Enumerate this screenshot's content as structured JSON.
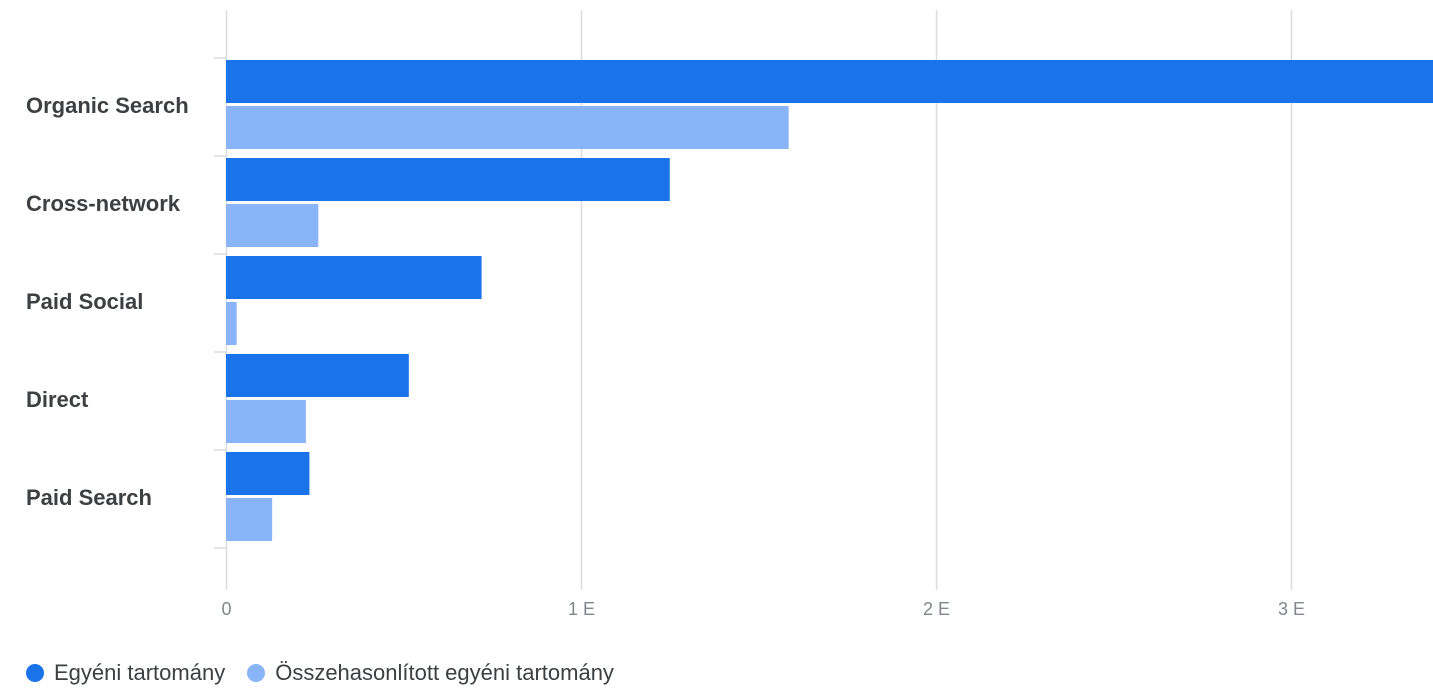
{
  "chart_data": {
    "type": "bar",
    "orientation": "horizontal",
    "categories": [
      "Organic Search",
      "Cross-network",
      "Paid Social",
      "Direct",
      "Paid Search"
    ],
    "series": [
      {
        "name": "Egyéni tartomány",
        "color": "#1a73e8",
        "values": [
          3400,
          1250,
          720,
          515,
          235
        ]
      },
      {
        "name": "Összehasonlított egyéni tartomány",
        "color": "#8ab4f8",
        "values": [
          1585,
          260,
          30,
          225,
          130
        ]
      }
    ],
    "xticks": [
      {
        "value": 0,
        "label": "0"
      },
      {
        "value": 1000,
        "label": "1 E"
      },
      {
        "value": 2000,
        "label": "2 E"
      },
      {
        "value": 3000,
        "label": "3 E"
      }
    ],
    "xlim": [
      0,
      3400
    ],
    "grid": true,
    "legend_position": "bottom-left"
  }
}
